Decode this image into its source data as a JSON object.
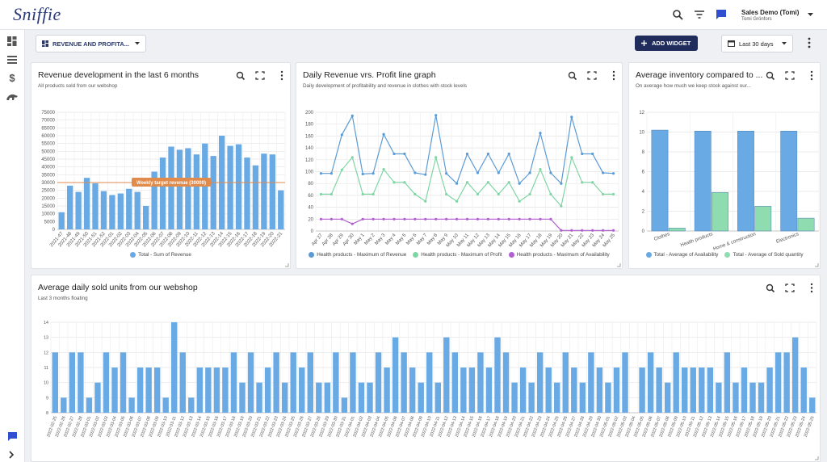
{
  "header": {
    "logo": "Sniffie",
    "account": "Sales Demo (Tomi)",
    "user": "Tomi Grönfors"
  },
  "toolbar": {
    "dashboard": "REVENUE AND PROFITA...",
    "add_widget": "ADD WIDGET",
    "range": "Last 30 days"
  },
  "widgets": [
    {
      "title": "Revenue development in the last 6 months",
      "subtitle": "All products sold from our webshop",
      "chart": {
        "type": "bar",
        "categories": [
          "2021-47",
          "2021-48",
          "2021-49",
          "2021-50",
          "2021-51",
          "2021-52",
          "2022-01",
          "2022-02",
          "2022-03",
          "2022-04",
          "2022-05",
          "2022-06",
          "2022-07",
          "2022-08",
          "2022-09",
          "2022-10",
          "2022-11",
          "2022-12",
          "2022-13",
          "2022-14",
          "2022-15",
          "2022-16",
          "2022-17",
          "2022-18",
          "2022-19",
          "2022-20",
          "2022-21"
        ],
        "series": [
          {
            "name": "Total - Sum of Revenue",
            "color": "#6aaae4",
            "values": [
              11000,
              28000,
              24000,
              33000,
              29500,
              24500,
              22000,
              23000,
              26000,
              24000,
              15000,
              37000,
              46000,
              53000,
              51000,
              52000,
              48000,
              55000,
              47000,
              60000,
              53500,
              54500,
              46000,
              41000,
              48500,
              48000,
              25000
            ]
          }
        ],
        "ylim": [
          0,
          75000
        ],
        "yticks": [
          0,
          5000,
          10000,
          15000,
          20000,
          25000,
          30000,
          35000,
          40000,
          45000,
          50000,
          55000,
          60000,
          65000,
          70000,
          75000
        ],
        "target": {
          "label": "Weekly target revenue (30000)",
          "value": 30000,
          "color": "#e08a4c"
        },
        "grid": true
      }
    },
    {
      "title": "Daily Revenue vrs. Profit line graph",
      "subtitle": "Daily development of profitability and revenue in clothes with stock levels",
      "chart": {
        "type": "line",
        "categories": [
          "Apr 27",
          "Apr 28",
          "Apr 29",
          "Apr 30",
          "May 1",
          "May 2",
          "May 3",
          "May 4",
          "May 5",
          "May 6",
          "May 7",
          "May 8",
          "May 9",
          "May 10",
          "May 11",
          "May 12",
          "May 13",
          "May 14",
          "May 15",
          "May 16",
          "May 17",
          "May 18",
          "May 19",
          "May 20",
          "May 21",
          "May 22",
          "May 23",
          "May 24",
          "May 25"
        ],
        "series": [
          {
            "name": "Health products - Maximum of Revenue",
            "color": "#5b9bd5",
            "values": [
              97,
              97,
              162,
              194,
              96,
              97,
              163,
              130,
              130,
              98,
              95,
              195,
              97,
              80,
              130,
              98,
              130,
              98,
              130,
              80,
              98,
              165,
              98,
              80,
              192,
              130,
              130,
              98,
              97
            ]
          },
          {
            "name": "Health products - Maximum of Profit",
            "color": "#7fd6a4",
            "values": [
              62,
              62,
              103,
              124,
              62,
              62,
              104,
              82,
              82,
              62,
              50,
              124,
              62,
              50,
              82,
              62,
              82,
              62,
              82,
              50,
              62,
              104,
              62,
              42,
              124,
              82,
              82,
              62,
              62
            ]
          },
          {
            "name": "Health products - Maximum of Availability",
            "color": "#b060d0",
            "values": [
              20,
              20,
              20,
              12,
              20,
              20,
              20,
              20,
              20,
              20,
              20,
              20,
              20,
              20,
              20,
              20,
              20,
              20,
              20,
              20,
              20,
              20,
              20,
              1,
              1,
              1,
              1,
              1,
              1
            ]
          }
        ],
        "ylim": [
          0,
          200
        ],
        "yticks": [
          0,
          20,
          40,
          60,
          80,
          100,
          120,
          140,
          160,
          180,
          200
        ],
        "grid": true
      }
    },
    {
      "title": "Average inventory compared to ...",
      "subtitle": "On average how much we keep stock against our...",
      "chart": {
        "type": "bar",
        "categories": [
          "Clothes",
          "Health products",
          "Home & construction",
          "Electronics"
        ],
        "series": [
          {
            "name": "Total - Average of Availability",
            "color": "#6aaae4",
            "values": [
              10.2,
              10.1,
              10.1,
              10.1
            ]
          },
          {
            "name": "Total - Average of Sold quantity",
            "color": "#8edcb0",
            "values": [
              0.3,
              3.9,
              2.5,
              1.3
            ]
          }
        ],
        "ylim": [
          0,
          12
        ],
        "yticks": [
          0,
          2,
          4,
          6,
          8,
          10,
          12
        ],
        "grid": true
      }
    },
    {
      "title": "Average daily sold units from our webshop",
      "subtitle": "Last 3 months floating",
      "chart": {
        "type": "bar",
        "categories": [
          "2022-02-25",
          "2022-02-26",
          "2022-02-27",
          "2022-02-28",
          "2022-03-01",
          "2022-03-02",
          "2022-03-03",
          "2022-03-04",
          "2022-03-05",
          "2022-03-06",
          "2022-03-07",
          "2022-03-08",
          "2022-03-09",
          "2022-03-10",
          "2022-03-11",
          "2022-03-12",
          "2022-03-13",
          "2022-03-14",
          "2022-03-15",
          "2022-03-16",
          "2022-03-17",
          "2022-03-18",
          "2022-03-19",
          "2022-03-20",
          "2022-03-21",
          "2022-03-22",
          "2022-03-23",
          "2022-03-24",
          "2022-03-25",
          "2022-03-26",
          "2022-03-27",
          "2022-03-28",
          "2022-03-29",
          "2022-03-30",
          "2022-03-31",
          "2022-04-01",
          "2022-04-02",
          "2022-04-03",
          "2022-04-04",
          "2022-04-05",
          "2022-04-06",
          "2022-04-07",
          "2022-04-08",
          "2022-04-09",
          "2022-04-10",
          "2022-04-11",
          "2022-04-12",
          "2022-04-13",
          "2022-04-14",
          "2022-04-15",
          "2022-04-16",
          "2022-04-17",
          "2022-04-18",
          "2022-04-19",
          "2022-04-20",
          "2022-04-21",
          "2022-04-22",
          "2022-04-23",
          "2022-04-24",
          "2022-04-25",
          "2022-04-26",
          "2022-04-27",
          "2022-04-28",
          "2022-04-29",
          "2022-04-30",
          "2022-05-01",
          "2022-05-02",
          "2022-05-03",
          "2022-05-04",
          "2022-05-05",
          "2022-05-06",
          "2022-05-07",
          "2022-05-08",
          "2022-05-09",
          "2022-05-10",
          "2022-05-11",
          "2022-05-12",
          "2022-05-13",
          "2022-05-14",
          "2022-05-15",
          "2022-05-16",
          "2022-05-17",
          "2022-05-18",
          "2022-05-19",
          "2022-05-20",
          "2022-05-21",
          "2022-05-22",
          "2022-05-23",
          "2022-05-24",
          "2022-05-25"
        ],
        "series": [
          {
            "name": null,
            "color": "#6aaae4",
            "values": [
              12,
              9,
              12,
              12,
              9,
              10,
              12,
              11,
              12,
              9,
              11,
              11,
              11,
              9,
              14,
              12,
              9,
              11,
              11,
              11,
              11,
              12,
              10,
              12,
              10,
              11,
              12,
              10,
              12,
              11,
              12,
              10,
              10,
              12,
              9,
              12,
              10,
              10,
              12,
              11,
              13,
              12,
              11,
              10,
              12,
              10,
              13,
              12,
              11,
              11,
              12,
              11,
              13,
              12,
              10,
              11,
              10,
              12,
              11,
              10,
              12,
              11,
              10,
              12,
              11,
              10,
              11,
              12,
              8,
              11,
              12,
              11,
              10,
              12,
              11,
              11,
              11,
              11,
              10,
              12,
              10,
              11,
              10,
              10,
              11,
              12,
              12,
              13,
              11,
              9
            ]
          }
        ],
        "ylim": [
          8,
          14
        ],
        "yticks": [
          8,
          9,
          10,
          11,
          12,
          13,
          14
        ],
        "grid": true
      }
    }
  ]
}
